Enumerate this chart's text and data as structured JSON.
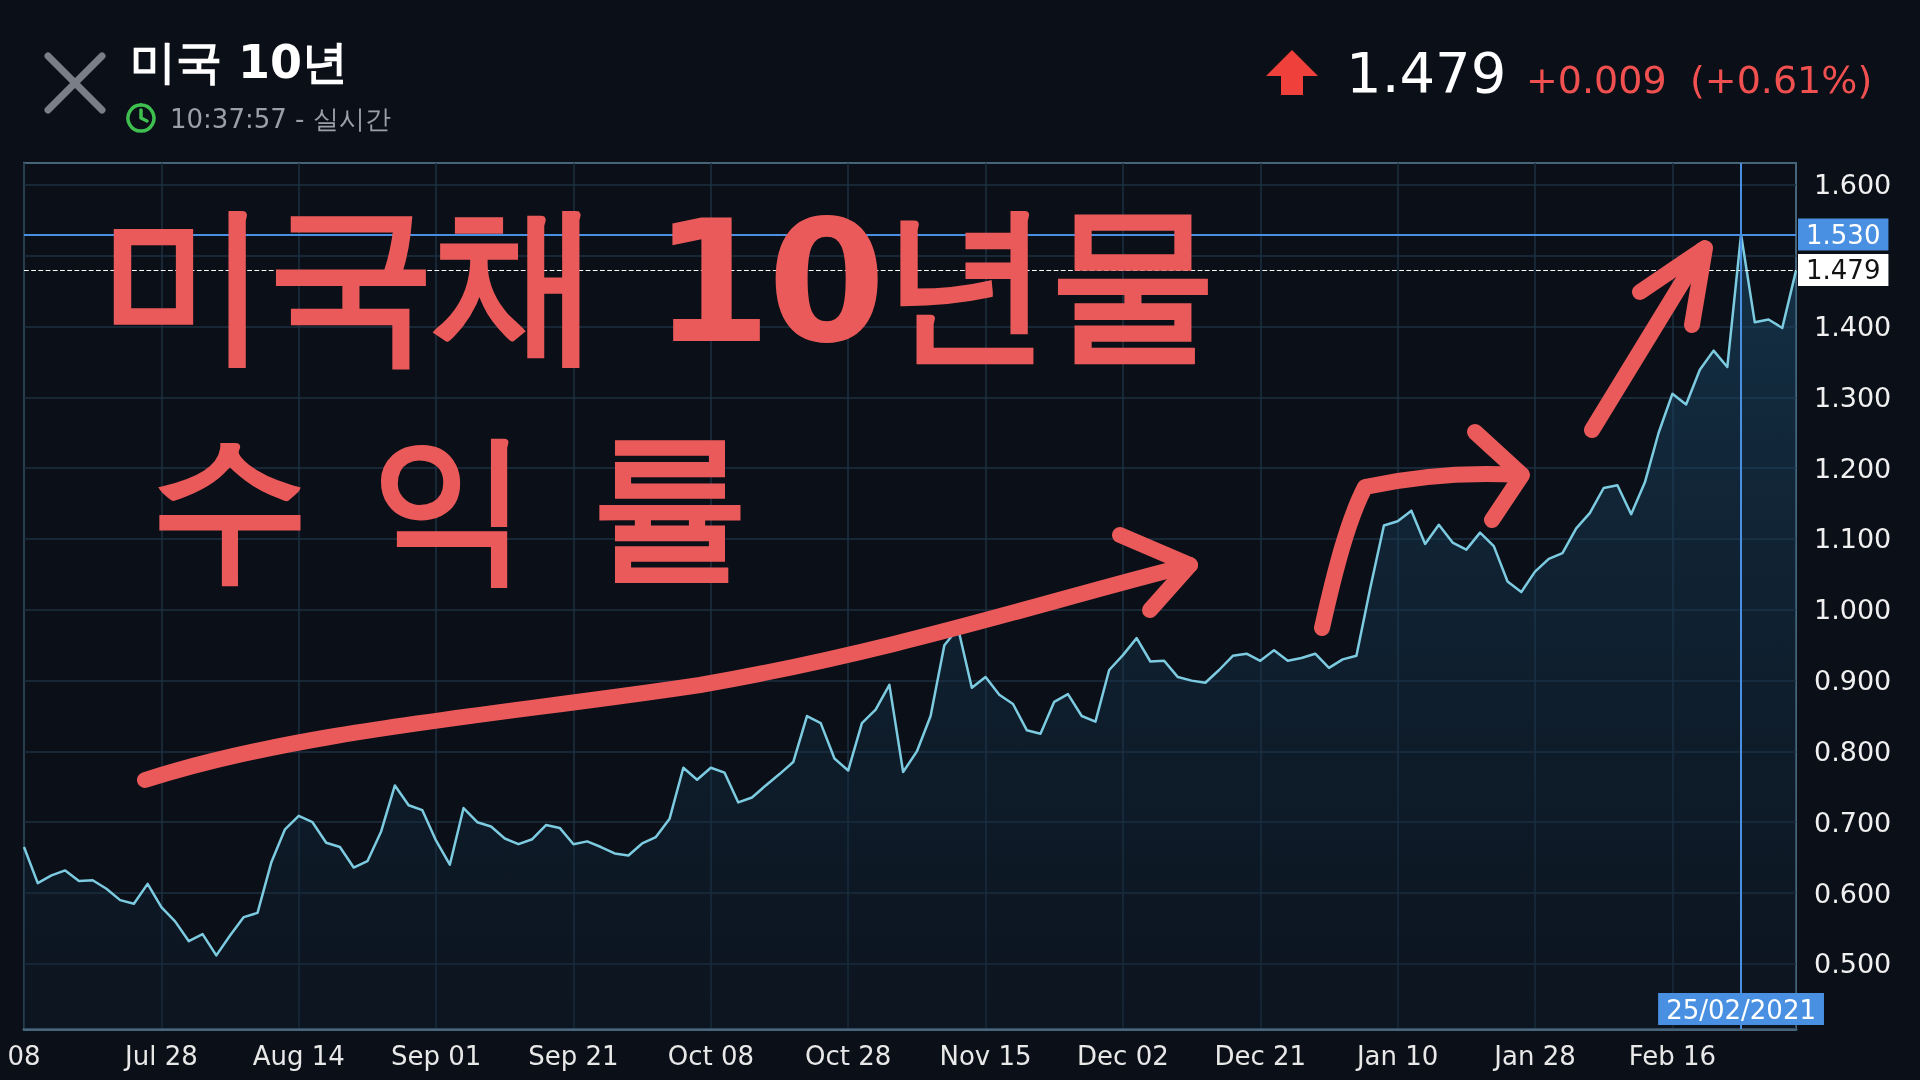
{
  "chart_data": {
    "type": "area",
    "title": "미국 10년",
    "subtitle": "10:37:57 - 실시간",
    "annotations": [
      "1.479",
      "+0.009",
      "(+0.61%)",
      "미국채 10년물",
      "수익률"
    ],
    "categories": [
      "08",
      null,
      null,
      null,
      null,
      null,
      null,
      null,
      null,
      null,
      "Jul 28",
      null,
      null,
      null,
      null,
      null,
      null,
      null,
      null,
      null,
      "Aug 14",
      null,
      null,
      null,
      null,
      null,
      null,
      null,
      null,
      null,
      "Sep 01",
      null,
      null,
      null,
      null,
      null,
      null,
      null,
      null,
      null,
      "Sep 21",
      null,
      null,
      null,
      null,
      null,
      null,
      null,
      null,
      null,
      "Oct 08",
      null,
      null,
      null,
      null,
      null,
      null,
      null,
      null,
      null,
      "Oct 28",
      null,
      null,
      null,
      null,
      null,
      null,
      null,
      null,
      null,
      "Nov 15",
      null,
      null,
      null,
      null,
      null,
      null,
      null,
      null,
      null,
      "Dec 02",
      null,
      null,
      null,
      null,
      null,
      null,
      null,
      null,
      null,
      "Dec 21",
      null,
      null,
      null,
      null,
      null,
      null,
      null,
      null,
      null,
      "Jan 10",
      null,
      null,
      null,
      null,
      null,
      null,
      null,
      null,
      null,
      "Jan 28",
      null,
      null,
      null,
      null,
      null,
      null,
      null,
      null,
      null,
      "Feb 16",
      null,
      null,
      null,
      null,
      "25/02/2021",
      null,
      null,
      null,
      null
    ],
    "series": [
      {
        "color": "#7ccbe0",
        "values": [
          0.665,
          0.614,
          0.625,
          0.632,
          0.617,
          0.618,
          0.606,
          0.59,
          0.585,
          0.613,
          0.58,
          0.56,
          0.532,
          0.542,
          0.512,
          0.54,
          0.566,
          0.572,
          0.643,
          0.69,
          0.709,
          0.7,
          0.671,
          0.665,
          0.636,
          0.645,
          0.687,
          0.752,
          0.724,
          0.717,
          0.674,
          0.64,
          0.72,
          0.7,
          0.694,
          0.677,
          0.669,
          0.676,
          0.696,
          0.692,
          0.669,
          0.673,
          0.665,
          0.656,
          0.653,
          0.67,
          0.679,
          0.705,
          0.777,
          0.76,
          0.777,
          0.77,
          0.728,
          0.735,
          0.752,
          0.768,
          0.785,
          0.85,
          0.84,
          0.79,
          0.773,
          0.84,
          0.859,
          0.894,
          0.771,
          0.8,
          0.85,
          0.95,
          0.974,
          0.89,
          0.905,
          0.88,
          0.867,
          0.83,
          0.825,
          0.87,
          0.881,
          0.85,
          0.842,
          0.915,
          0.936,
          0.96,
          0.927,
          0.928,
          0.905,
          0.9,
          0.897,
          0.915,
          0.935,
          0.938,
          0.928,
          0.943,
          0.928,
          0.932,
          0.938,
          0.918,
          0.93,
          0.935,
          1.03,
          1.119,
          1.125,
          1.14,
          1.093,
          1.12,
          1.095,
          1.085,
          1.109,
          1.09,
          1.04,
          1.025,
          1.054,
          1.072,
          1.08,
          1.115,
          1.137,
          1.172,
          1.176,
          1.135,
          1.18,
          1.25,
          1.305,
          1.29,
          1.339,
          1.366,
          1.343,
          1.53,
          1.406,
          1.41,
          1.398,
          1.479
        ]
      }
    ],
    "ylim": [
      0.408,
      1.631
    ],
    "yticks": [
      {
        "value": 0.5,
        "label": "0.500"
      },
      {
        "value": 0.6,
        "label": "0.600"
      },
      {
        "value": 0.7,
        "label": "0.700"
      },
      {
        "value": 0.8,
        "label": "0.800"
      },
      {
        "value": 0.9,
        "label": "0.900"
      },
      {
        "value": 1.0,
        "label": "1.000"
      },
      {
        "value": 1.1,
        "label": "1.100"
      },
      {
        "value": 1.2,
        "label": "1.200"
      },
      {
        "value": 1.3,
        "label": "1.300"
      },
      {
        "value": 1.4,
        "label": "1.400"
      },
      {
        "value": 1.5,
        "label": null
      },
      {
        "value": 1.6,
        "label": "1.600"
      }
    ],
    "ref_lines": [
      {
        "axis": "y",
        "value": 1.53,
        "label": "1.530",
        "color": "#4a90e2",
        "line_style": "solid"
      },
      {
        "axis": "y",
        "value": 1.479,
        "label": "1.479",
        "color": "#ffffff",
        "line_style": "dashed"
      },
      {
        "axis": "x",
        "value": "25/02/2021",
        "color": "#4a90e2",
        "line_style": "solid"
      }
    ],
    "grid": true,
    "marker": "none"
  }
}
